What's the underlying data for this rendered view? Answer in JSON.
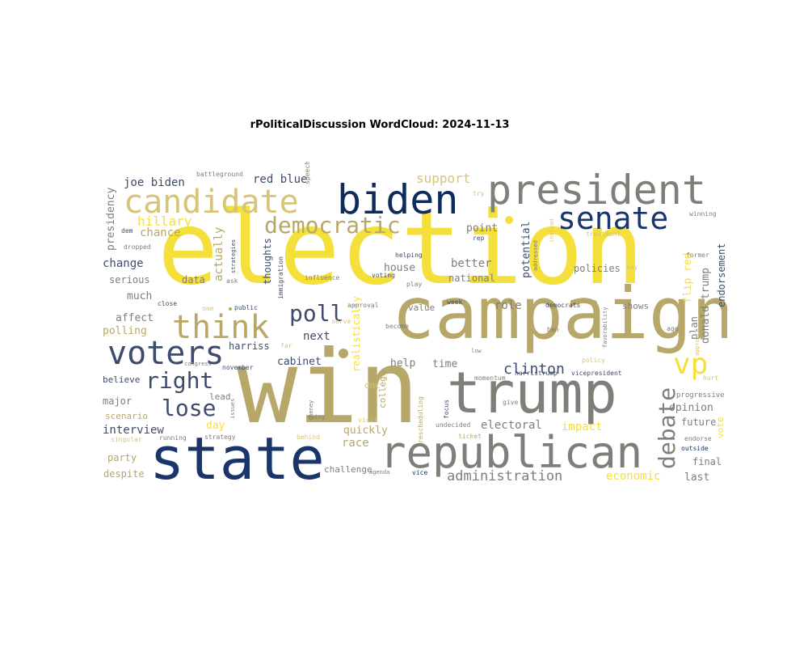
{
  "title": "rPoliticalDiscussion WordCloud: 2024-11-13",
  "palette": {
    "yellow": "#f5df3a",
    "olive": "#b7a768",
    "gray": "#7f7e78",
    "navy": "#19356a",
    "darknavy": "#0e2b5c",
    "tan": "#d7c476",
    "slate": "#3d4c6d"
  },
  "words": [
    {
      "text": "election",
      "color": "yellow"
    },
    {
      "text": "win",
      "color": "olive"
    },
    {
      "text": "campaign",
      "color": "olive"
    },
    {
      "text": "state",
      "color": "navy"
    },
    {
      "text": "trump",
      "color": "gray"
    },
    {
      "text": "republican",
      "color": "gray"
    },
    {
      "text": "president",
      "color": "gray"
    },
    {
      "text": "biden",
      "color": "darknavy"
    },
    {
      "text": "candidate",
      "color": "tan"
    },
    {
      "text": "senate",
      "color": "navy"
    },
    {
      "text": "voters",
      "color": "slate"
    },
    {
      "text": "think",
      "color": "olive"
    },
    {
      "text": "democratic",
      "color": "olive"
    },
    {
      "text": "debate",
      "color": "gray"
    },
    {
      "text": "vp",
      "color": "yellow"
    },
    {
      "text": "right",
      "color": "slate"
    },
    {
      "text": "lose",
      "color": "slate"
    },
    {
      "text": "poll",
      "color": "slate"
    },
    {
      "text": "clinton",
      "color": "slate"
    },
    {
      "text": "administration",
      "color": "gray"
    },
    {
      "text": "hillary",
      "color": "yellow"
    },
    {
      "text": "chance",
      "color": "olive"
    },
    {
      "text": "joe biden",
      "color": "slate"
    },
    {
      "text": "red blue",
      "color": "slate"
    },
    {
      "text": "support",
      "color": "tan"
    },
    {
      "text": "change",
      "color": "slate"
    },
    {
      "text": "serious",
      "color": "gray"
    },
    {
      "text": "much",
      "color": "gray"
    },
    {
      "text": "affect",
      "color": "gray"
    },
    {
      "text": "polling",
      "color": "olive"
    },
    {
      "text": "believe",
      "color": "slate"
    },
    {
      "text": "major",
      "color": "gray"
    },
    {
      "text": "scenario",
      "color": "olive"
    },
    {
      "text": "interview",
      "color": "slate"
    },
    {
      "text": "party",
      "color": "olive"
    },
    {
      "text": "despite",
      "color": "olive"
    },
    {
      "text": "data",
      "color": "gray"
    },
    {
      "text": "actually",
      "color": "olive"
    },
    {
      "text": "thoughts",
      "color": "slate"
    },
    {
      "text": "harriss",
      "color": "slate"
    },
    {
      "text": "cabinet",
      "color": "slate"
    },
    {
      "text": "next",
      "color": "slate"
    },
    {
      "text": "lead",
      "color": "gray"
    },
    {
      "text": "day",
      "color": "yellow"
    },
    {
      "text": "house",
      "color": "gray"
    },
    {
      "text": "better",
      "color": "gray"
    },
    {
      "text": "national",
      "color": "gray"
    },
    {
      "text": "point",
      "color": "gray"
    },
    {
      "text": "potential",
      "color": "slate"
    },
    {
      "text": "policies",
      "color": "gray"
    },
    {
      "text": "flip red",
      "color": "yellow"
    },
    {
      "text": "donald trump",
      "color": "gray"
    },
    {
      "text": "endorsement",
      "color": "slate"
    },
    {
      "text": "role",
      "color": "gray"
    },
    {
      "text": "value",
      "color": "gray"
    },
    {
      "text": "shows",
      "color": "gray"
    },
    {
      "text": "help",
      "color": "gray"
    },
    {
      "text": "time",
      "color": "gray"
    },
    {
      "text": "realistically",
      "color": "yellow"
    },
    {
      "text": "dnc",
      "color": "tan"
    },
    {
      "text": "college",
      "color": "olive"
    },
    {
      "text": "quickly",
      "color": "olive"
    },
    {
      "text": "race",
      "color": "olive"
    },
    {
      "text": "challenge",
      "color": "gray"
    },
    {
      "text": "electoral",
      "color": "gray"
    },
    {
      "text": "impact",
      "color": "yellow"
    },
    {
      "text": "economic",
      "color": "yellow"
    },
    {
      "text": "last",
      "color": "gray"
    },
    {
      "text": "final",
      "color": "gray"
    },
    {
      "text": "plan",
      "color": "gray"
    },
    {
      "text": "vote",
      "color": "yellow"
    },
    {
      "text": "future",
      "color": "gray"
    },
    {
      "text": "opinion",
      "color": "gray"
    },
    {
      "text": "progressive",
      "color": "gray"
    },
    {
      "text": "presidency",
      "color": "gray"
    },
    {
      "text": "battleground",
      "color": "gray"
    },
    {
      "text": "speech",
      "color": "gray"
    },
    {
      "text": "try",
      "color": "tan"
    },
    {
      "text": "dem",
      "color": "slate"
    },
    {
      "text": "dropped",
      "color": "gray"
    },
    {
      "text": "strategies",
      "color": "slate"
    },
    {
      "text": "ask",
      "color": "gray"
    },
    {
      "text": "immigration",
      "color": "slate"
    },
    {
      "text": "influence",
      "color": "gray"
    },
    {
      "text": "voting",
      "color": "slate"
    },
    {
      "text": "helping",
      "color": "slate"
    },
    {
      "text": "rep",
      "color": "slate"
    },
    {
      "text": "play",
      "color": "gray"
    },
    {
      "text": "instead",
      "color": "tan"
    },
    {
      "text": "addressed",
      "color": "gray"
    },
    {
      "text": "treatment",
      "color": "tan"
    },
    {
      "text": "winning",
      "color": "gray"
    },
    {
      "text": "former",
      "color": "gray"
    },
    {
      "text": "key",
      "color": "tan"
    },
    {
      "text": "close",
      "color": "slate"
    },
    {
      "text": "one",
      "color": "tan"
    },
    {
      "text": "public",
      "color": "slate"
    },
    {
      "text": "approval",
      "color": "gray"
    },
    {
      "text": "week",
      "color": "slate"
    },
    {
      "text": "democrats",
      "color": "slate"
    },
    {
      "text": "favorability",
      "color": "gray"
    },
    {
      "text": "age",
      "color": "gray"
    },
    {
      "text": "serve",
      "color": "tan"
    },
    {
      "text": "become",
      "color": "gray"
    },
    {
      "text": "ban",
      "color": "gray"
    },
    {
      "text": "approach",
      "color": "tan"
    },
    {
      "text": "far",
      "color": "tan"
    },
    {
      "text": "low",
      "color": "gray"
    },
    {
      "text": "policy",
      "color": "tan"
    },
    {
      "text": "congress",
      "color": "gray"
    },
    {
      "text": "november",
      "color": "slate"
    },
    {
      "text": "issues",
      "color": "gray"
    },
    {
      "text": "momentum",
      "color": "gray"
    },
    {
      "text": "harristrump",
      "color": "slate"
    },
    {
      "text": "vicepresident",
      "color": "slate"
    },
    {
      "text": "hurt",
      "color": "tan"
    },
    {
      "text": "cheney",
      "color": "gray"
    },
    {
      "text": "swing",
      "color": "gray"
    },
    {
      "text": "visit",
      "color": "tan"
    },
    {
      "text": "rescheduling",
      "color": "olive"
    },
    {
      "text": "focus",
      "color": "slate"
    },
    {
      "text": "give",
      "color": "gray"
    },
    {
      "text": "undecided",
      "color": "gray"
    },
    {
      "text": "ticket",
      "color": "olive"
    },
    {
      "text": "endorse",
      "color": "gray"
    },
    {
      "text": "outside",
      "color": "navy"
    },
    {
      "text": "singular",
      "color": "tan"
    },
    {
      "text": "running",
      "color": "gray"
    },
    {
      "text": "strategy",
      "color": "gray"
    },
    {
      "text": "behind",
      "color": "tan"
    },
    {
      "text": "agenda",
      "color": "gray"
    },
    {
      "text": "vice",
      "color": "navy"
    }
  ]
}
